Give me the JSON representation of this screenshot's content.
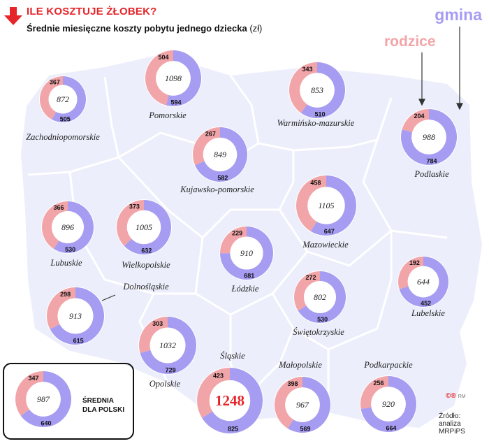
{
  "header": {
    "title": "ILE KOSZTUJE ŻŁOBEK?",
    "subtitle": "Średnie miesięczne koszty pobytu jednego dziecka",
    "unit": "(zł)"
  },
  "legend": {
    "gmina": "gmina",
    "rodzice": "rodzice"
  },
  "colors": {
    "gmina": "#a69cf2",
    "rodzice": "#f2a5a8",
    "map": "#eceefb",
    "accent": "#e5252a"
  },
  "average": {
    "label_line1": "ŚREDNIA",
    "label_line2": "DLA POLSKI",
    "total": "987",
    "rodzice": 347,
    "gmina": 640
  },
  "source": {
    "line1": "Źródło:",
    "line2": "analiza",
    "line3": "MRPiPS"
  },
  "credit": {
    "logo": "©®",
    "initials": "RM"
  },
  "chart_data": {
    "type": "donut",
    "title": "Średnie miesięczne koszty pobytu jednego dziecka (zł)",
    "series_names": [
      "gmina",
      "rodzice"
    ],
    "regions": [
      {
        "name": "Zachodniopomorskie",
        "total": 872,
        "rodzice": 367,
        "gmina": 505
      },
      {
        "name": "Pomorskie",
        "total": 1098,
        "rodzice": 504,
        "gmina": 594
      },
      {
        "name": "Warmińsko-mazurskie",
        "total": 853,
        "rodzice": 343,
        "gmina": 510
      },
      {
        "name": "Podlaskie",
        "total": 988,
        "rodzice": 204,
        "gmina": 784
      },
      {
        "name": "Kujawsko-pomorskie",
        "total": 849,
        "rodzice": 267,
        "gmina": 582
      },
      {
        "name": "Lubuskie",
        "total": 896,
        "rodzice": 366,
        "gmina": 530
      },
      {
        "name": "Wielkopolskie",
        "total": 1005,
        "rodzice": 373,
        "gmina": 632
      },
      {
        "name": "Łódzkie",
        "total": 910,
        "rodzice": 229,
        "gmina": 681
      },
      {
        "name": "Mazowieckie",
        "total": 1105,
        "rodzice": 458,
        "gmina": 647
      },
      {
        "name": "Lubelskie",
        "total": 644,
        "rodzice": 192,
        "gmina": 452
      },
      {
        "name": "Dolnośląskie",
        "total": 913,
        "rodzice": 298,
        "gmina": 615
      },
      {
        "name": "Świętokrzyskie",
        "total": 802,
        "rodzice": 272,
        "gmina": 530
      },
      {
        "name": "Opolskie",
        "total": 1032,
        "rodzice": 303,
        "gmina": 729
      },
      {
        "name": "Śląskie",
        "total": 1248,
        "rodzice": 423,
        "gmina": 825
      },
      {
        "name": "Małopolskie",
        "total": 967,
        "rodzice": 398,
        "gmina": 569
      },
      {
        "name": "Podkarpackie",
        "total": 920,
        "rodzice": 256,
        "gmina": 664
      }
    ]
  }
}
